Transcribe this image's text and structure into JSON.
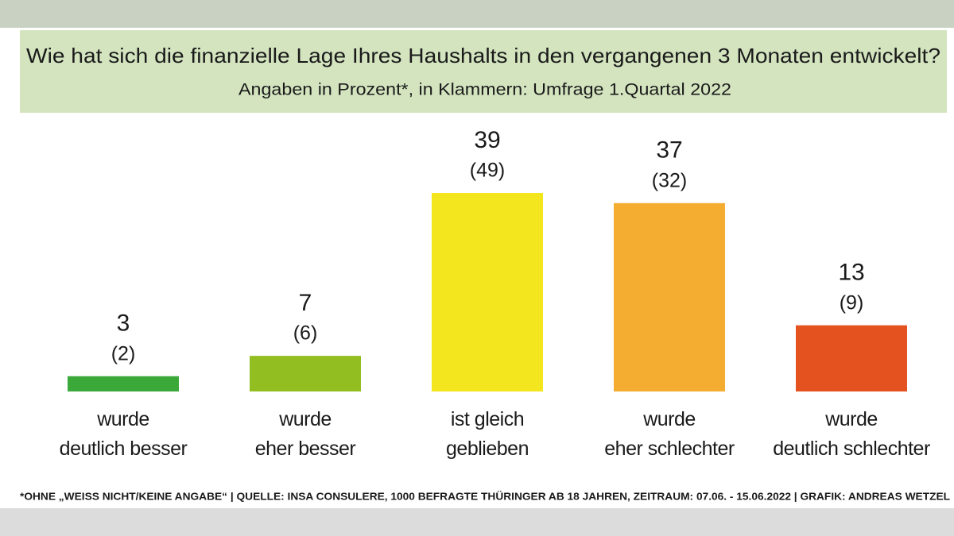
{
  "chart_data": {
    "type": "bar",
    "title": "Wie hat sich die finanzielle Lage Ihres Haushalts in den vergangenen 3 Monaten  entwickelt?",
    "subtitle": "Angaben in Prozent*, in Klammern: Umfrage 1.Quartal 2022",
    "categories": [
      "wurde\ndeutlich besser",
      "wurde\neher besser",
      "ist gleich\ngeblieben",
      "wurde\neher schlechter",
      "wurde\ndeutlich schlechter"
    ],
    "values": [
      3,
      7,
      39,
      37,
      13
    ],
    "colors": [
      "#3aa93a",
      "#93be22",
      "#f4e61e",
      "#f4ac31",
      "#e4521f"
    ],
    "comparison": {
      "values": [
        2,
        6,
        49,
        32,
        9
      ],
      "value_labels": [
        "(2)",
        "(6)",
        "(49)",
        "(32)",
        "(9)"
      ]
    },
    "ylim": [
      0,
      39
    ],
    "footnote": "*OHNE „WEISS NICHT/KEINE ANGABE“ | QUELLE: INSA CONSULERE, 1000 BEFRAGTE THÜRINGER AB 18 JAHREN, ZEITRAUM: 07.06. - 15.06.2022 | GRAFIK: ANDREAS WETZEL"
  }
}
